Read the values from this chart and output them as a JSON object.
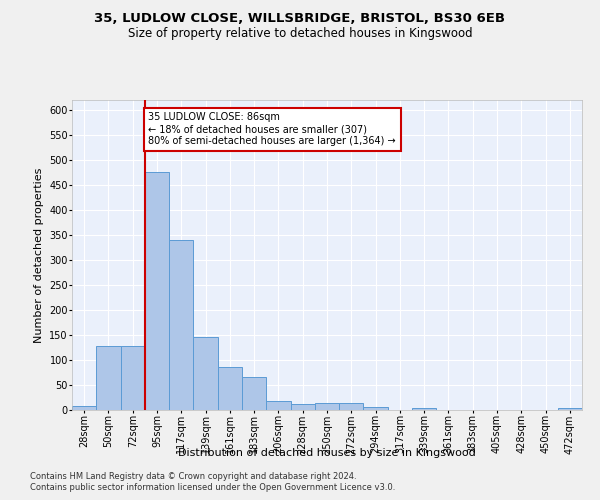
{
  "title1": "35, LUDLOW CLOSE, WILLSBRIDGE, BRISTOL, BS30 6EB",
  "title2": "Size of property relative to detached houses in Kingswood",
  "xlabel": "Distribution of detached houses by size in Kingswood",
  "ylabel": "Number of detached properties",
  "bin_labels": [
    "28sqm",
    "50sqm",
    "72sqm",
    "95sqm",
    "117sqm",
    "139sqm",
    "161sqm",
    "183sqm",
    "206sqm",
    "228sqm",
    "250sqm",
    "272sqm",
    "294sqm",
    "317sqm",
    "339sqm",
    "361sqm",
    "383sqm",
    "405sqm",
    "428sqm",
    "450sqm",
    "472sqm"
  ],
  "bar_values": [
    9,
    128,
    128,
    477,
    340,
    146,
    86,
    67,
    19,
    12,
    15,
    15,
    7,
    0,
    5,
    0,
    0,
    0,
    0,
    0,
    5
  ],
  "bar_color": "#aec6e8",
  "bar_edge_color": "#5b9bd5",
  "annotation_text": "35 LUDLOW CLOSE: 86sqm\n← 18% of detached houses are smaller (307)\n80% of semi-detached houses are larger (1,364) →",
  "annotation_box_color": "#ffffff",
  "annotation_box_edge_color": "#cc0000",
  "vline_color": "#cc0000",
  "vline_x_index": 2.5,
  "ylim": [
    0,
    620
  ],
  "yticks": [
    0,
    50,
    100,
    150,
    200,
    250,
    300,
    350,
    400,
    450,
    500,
    550,
    600
  ],
  "footnote1": "Contains HM Land Registry data © Crown copyright and database right 2024.",
  "footnote2": "Contains public sector information licensed under the Open Government Licence v3.0.",
  "bg_color": "#eaf0fb",
  "grid_color": "#ffffff",
  "title1_fontsize": 9.5,
  "title2_fontsize": 8.5,
  "xlabel_fontsize": 8,
  "ylabel_fontsize": 8,
  "tick_fontsize": 7,
  "footnote_fontsize": 6
}
